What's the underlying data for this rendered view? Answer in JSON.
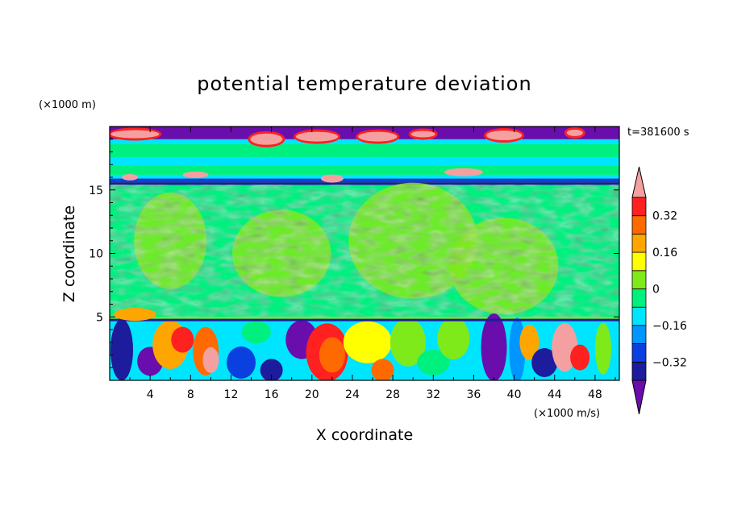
{
  "chart_data": {
    "type": "heatmap",
    "title": "potential temperature deviation",
    "xlabel": "X coordinate",
    "ylabel": "Z coordinate",
    "x_unit": "(×1000 m/s)",
    "y_unit": "(×1000 m)",
    "time_label": "t=381600 s",
    "xlim": [
      0,
      50.4
    ],
    "ylim": [
      0,
      20
    ],
    "x_ticks": [
      4,
      8,
      12,
      16,
      20,
      24,
      28,
      32,
      36,
      40,
      44,
      48
    ],
    "y_ticks": [
      5,
      10,
      15
    ],
    "x_tick_labels": [
      "4",
      "8",
      "12",
      "16",
      "20",
      "24",
      "28",
      "32",
      "36",
      "40",
      "44",
      "48"
    ],
    "y_tick_labels": [
      "5",
      "10",
      "15"
    ],
    "colorbar": {
      "levels": [
        -0.48,
        -0.4,
        -0.32,
        -0.24,
        -0.16,
        -0.08,
        0,
        0.08,
        0.16,
        0.24,
        0.32,
        0.4,
        0.48
      ],
      "colors": [
        "#6a0dad",
        "#1c1c9c",
        "#0a40e0",
        "#0096ff",
        "#00e5ff",
        "#00f080",
        "#7fea1a",
        "#ffff00",
        "#ffa500",
        "#ff6a00",
        "#ff2020",
        "#f4a0a0"
      ],
      "labels": [
        "0.32",
        "0.16",
        "0",
        "−0.16",
        "−0.32"
      ],
      "label_values": [
        0.32,
        0.16,
        0,
        -0.16,
        -0.32
      ],
      "extend": "both"
    },
    "features": [
      {
        "z_range": [
          19.0,
          19.8
        ],
        "description": "mixed positive/negative band at domain top"
      },
      {
        "z_range": [
          15.4,
          16.2
        ],
        "value": -0.4
      },
      {
        "z_range": [
          5.0,
          15.4
        ],
        "value": 0.0
      },
      {
        "z_range": [
          0.0,
          4.8
        ],
        "value_range": [
          -0.48,
          0.48
        ]
      }
    ]
  }
}
